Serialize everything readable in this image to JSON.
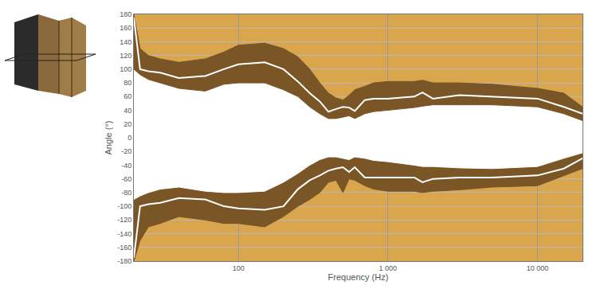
{
  "chart_data": {
    "type": "area",
    "x_label": "Frequency (Hz)",
    "y_label": "Angle (°)",
    "log": "x",
    "grid": true,
    "color": "#d9a64e",
    "x": [
      20,
      22,
      25,
      30,
      40,
      60,
      80,
      100,
      150,
      200,
      250,
      300,
      350,
      400,
      450,
      500,
      550,
      600,
      700,
      800,
      1000,
      1500,
      1700,
      2000,
      3000,
      5000,
      10000,
      15000,
      20000
    ],
    "series": [
      {
        "type": "edge",
        "color": "#7a5526",
        "values": [
          180,
          130,
          120,
          115,
          110,
          115,
          125,
          135,
          138,
          130,
          118,
          100,
          80,
          65,
          58,
          55,
          62,
          70,
          75,
          80,
          82,
          82,
          84,
          80,
          80,
          78,
          72,
          65,
          45
        ]
      },
      {
        "type": "area",
        "color": "#7a5526",
        "values": [
          100,
          92,
          85,
          80,
          72,
          68,
          78,
          80,
          80,
          70,
          60,
          45,
          35,
          28,
          28,
          30,
          32,
          28,
          35,
          38,
          40,
          44,
          46,
          48,
          48,
          48,
          45,
          35,
          25
        ]
      },
      {
        "type": "area",
        "color": "#ffffff",
        "values": [
          -90,
          -85,
          -80,
          -75,
          -72,
          -78,
          -80,
          -80,
          -78,
          -65,
          -52,
          -40,
          -32,
          -28,
          -28,
          -30,
          -32,
          -28,
          -30,
          -33,
          -35,
          -40,
          -42,
          -42,
          -44,
          -45,
          -42,
          -30,
          -22
        ]
      },
      {
        "type": "area",
        "color": "#7a5526",
        "values": [
          -180,
          -150,
          -130,
          -125,
          -115,
          -120,
          -125,
          -125,
          -130,
          -115,
          -100,
          -90,
          -80,
          -65,
          -62,
          -80,
          -60,
          -62,
          -70,
          -75,
          -78,
          -78,
          -80,
          -78,
          -76,
          -72,
          -70,
          -55,
          -45
        ]
      },
      {
        "type": "line",
        "color": "#ffffff",
        "values": [
          175,
          100,
          97,
          95,
          87,
          90,
          100,
          107,
          110,
          100,
          82,
          65,
          53,
          38,
          42,
          45,
          44,
          39,
          55,
          57,
          57,
          60,
          66,
          57,
          62,
          60,
          57,
          45,
          35
        ]
      },
      {
        "type": "line",
        "color": "#ffffff",
        "values": [
          -175,
          -100,
          -97,
          -95,
          -88,
          -90,
          -100,
          -103,
          -105,
          -100,
          -75,
          -62,
          -55,
          -48,
          -45,
          -43,
          -50,
          -43,
          -58,
          -58,
          -58,
          -58,
          -65,
          -60,
          -58,
          -58,
          -55,
          -45,
          -30
        ]
      }
    ],
    "xlim": [
      20,
      20000
    ],
    "xticks": [
      100,
      {
        "value": 1000,
        "label": "1 000"
      },
      {
        "value": 10000,
        "label": "10 000"
      }
    ],
    "ylim": [
      -180,
      180
    ],
    "yticks": [
      -180,
      -160,
      -140,
      -120,
      -100,
      -80,
      -60,
      -40,
      -20,
      0,
      20,
      40,
      60,
      80,
      100,
      120,
      140,
      160,
      180
    ]
  }
}
